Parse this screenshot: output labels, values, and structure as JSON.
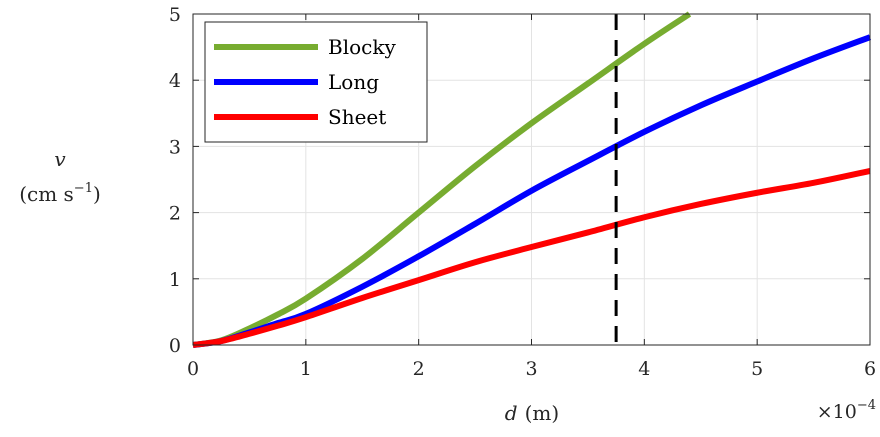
{
  "chart_data": {
    "type": "line",
    "x_unit_note": "×10^-4",
    "xlabel": {
      "var": "d",
      "unit": "(m)"
    },
    "ylabel": {
      "var": "v",
      "unit_base": "(cm s",
      "unit_exp": "−1",
      "unit_close": ")"
    },
    "x_multiplier_label": {
      "base": "×10",
      "exp": "−4"
    },
    "xlim": [
      0,
      6
    ],
    "ylim": [
      0,
      5
    ],
    "xticks": [
      "0",
      "1",
      "2",
      "3",
      "4",
      "5",
      "6"
    ],
    "yticks": [
      "0",
      "1",
      "2",
      "3",
      "4",
      "5"
    ],
    "grid": true,
    "legend_position": "top-left",
    "vline": {
      "x": 3.75,
      "style": "dashed",
      "color": "#000000"
    },
    "series": [
      {
        "name": "Blocky",
        "color": "#77AC30",
        "x": [
          0,
          0.25,
          0.5,
          0.75,
          1.0,
          1.5,
          2.0,
          2.5,
          3.0,
          3.5,
          4.0,
          4.4
        ],
        "y": [
          0,
          0.07,
          0.25,
          0.46,
          0.7,
          1.3,
          2.0,
          2.7,
          3.35,
          3.95,
          4.55,
          5.0
        ]
      },
      {
        "name": "Long",
        "color": "#0000FF",
        "x": [
          0,
          0.25,
          0.5,
          0.75,
          1.0,
          1.5,
          2.0,
          2.5,
          3.0,
          3.5,
          4.0,
          4.5,
          5.0,
          5.5,
          6.0
        ],
        "y": [
          0,
          0.06,
          0.19,
          0.33,
          0.47,
          0.88,
          1.34,
          1.83,
          2.33,
          2.78,
          3.22,
          3.62,
          3.98,
          4.33,
          4.65
        ]
      },
      {
        "name": "Sheet",
        "color": "#FF0000",
        "x": [
          0,
          0.25,
          0.5,
          0.75,
          1.0,
          1.5,
          2.0,
          2.5,
          3.0,
          3.5,
          4.0,
          4.5,
          5.0,
          5.5,
          6.0
        ],
        "y": [
          0,
          0.06,
          0.17,
          0.29,
          0.42,
          0.71,
          0.98,
          1.25,
          1.48,
          1.7,
          1.93,
          2.13,
          2.3,
          2.45,
          2.63
        ]
      }
    ]
  }
}
